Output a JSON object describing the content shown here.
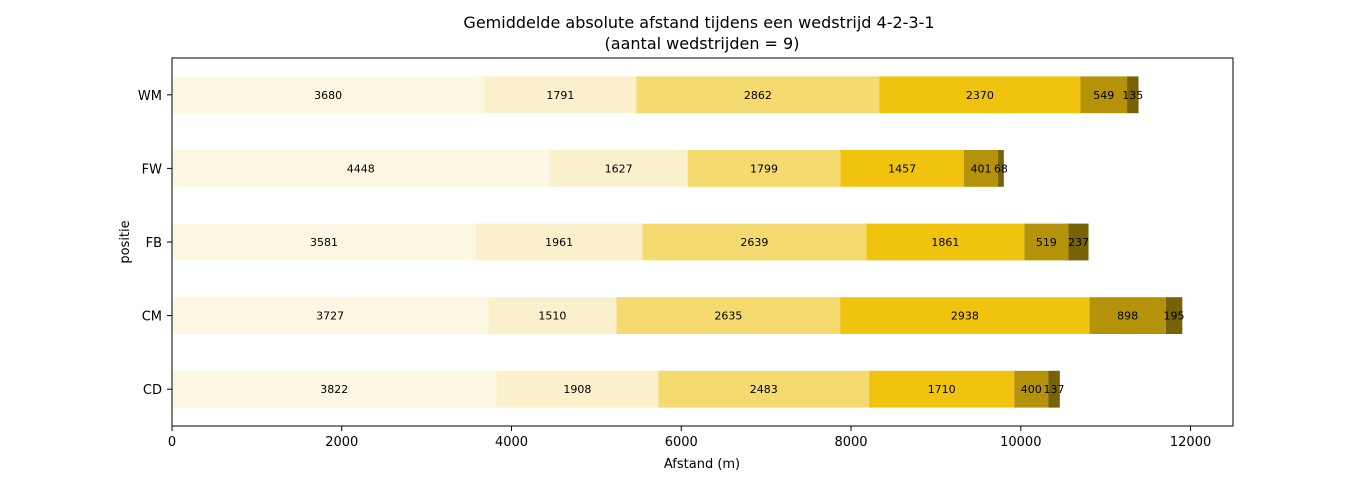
{
  "chart_data": {
    "type": "bar",
    "orientation": "horizontal",
    "stacked": true,
    "title_line1": "Gemiddelde absolute afstand tijdens een wedstrijd 4-2-3-1",
    "title_line2": "(aantal wedstrijden = 9)",
    "xlabel": "Afstand (m)",
    "ylabel": "positie",
    "xlim": [
      0,
      12500
    ],
    "xticks": [
      0,
      2000,
      4000,
      6000,
      8000,
      10000,
      12000
    ],
    "categories": [
      "CD",
      "CM",
      "FB",
      "FW",
      "WM"
    ],
    "series": [
      {
        "color": "#fcf7e3",
        "values": [
          3822,
          3727,
          3581,
          4448,
          3680
        ]
      },
      {
        "color": "#faf1cc",
        "values": [
          1908,
          1510,
          1961,
          1627,
          1791
        ]
      },
      {
        "color": "#f5da70",
        "values": [
          2483,
          2635,
          2639,
          1799,
          2862
        ]
      },
      {
        "color": "#f0c30f",
        "values": [
          1710,
          2938,
          1861,
          1457,
          2370
        ]
      },
      {
        "color": "#b4930b",
        "values": [
          400,
          898,
          519,
          401,
          549
        ]
      },
      {
        "color": "#786208",
        "values": [
          137,
          195,
          237,
          68,
          135
        ]
      }
    ],
    "grid": false,
    "legend": "none"
  }
}
